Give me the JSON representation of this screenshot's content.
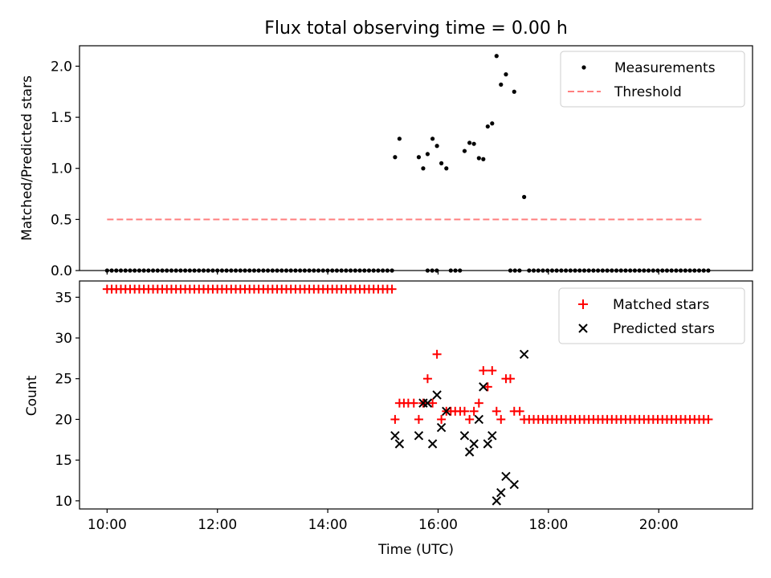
{
  "figure": {
    "title": "Flux total observing time = 0.00 h"
  },
  "chart_data": [
    {
      "type": "scatter",
      "ylabel": "Matched/Predicted stars",
      "xlabel": "",
      "xlim": [
        9.5,
        21.7
      ],
      "ylim": [
        0,
        2.2
      ],
      "xticks": [
        10,
        12,
        14,
        16,
        18,
        20
      ],
      "yticks": [
        0.0,
        0.5,
        1.0,
        1.5,
        2.0
      ],
      "ytick_labels": [
        "0.0",
        "0.5",
        "1.0",
        "1.5",
        "2.0"
      ],
      "legend_position": "top-right",
      "series": [
        {
          "name": "Measurements",
          "kind": "dot",
          "color": "#000000",
          "points": [
            [
              15.22,
              1.11
            ],
            [
              15.3,
              1.29
            ],
            [
              15.65,
              1.11
            ],
            [
              15.73,
              1.0
            ],
            [
              15.81,
              1.14
            ],
            [
              15.9,
              1.29
            ],
            [
              15.98,
              1.22
            ],
            [
              16.06,
              1.05
            ],
            [
              16.15,
              1.0
            ],
            [
              16.48,
              1.17
            ],
            [
              16.57,
              1.25
            ],
            [
              16.65,
              1.24
            ],
            [
              16.74,
              1.1
            ],
            [
              16.82,
              1.09
            ],
            [
              16.9,
              1.41
            ],
            [
              16.98,
              1.44
            ],
            [
              17.06,
              2.1
            ],
            [
              17.14,
              1.82
            ],
            [
              17.23,
              1.92
            ],
            [
              17.38,
              1.75
            ],
            [
              17.56,
              0.72
            ]
          ],
          "zero_segments": [
            [
              10.0,
              15.17,
              0.0833
            ],
            [
              15.81,
              15.98,
              0.0833
            ],
            [
              16.23,
              16.4,
              0.0833
            ],
            [
              17.31,
              17.48,
              0.0833
            ],
            [
              17.65,
              20.9,
              0.0833
            ]
          ]
        },
        {
          "name": "Threshold",
          "kind": "dashed-line",
          "color": "#ff7f7f",
          "x": [
            10.0,
            20.83
          ],
          "y": [
            0.5,
            0.5
          ]
        }
      ]
    },
    {
      "type": "scatter",
      "ylabel": "Count",
      "xlabel": "Time (UTC)",
      "xlim": [
        9.5,
        21.7
      ],
      "ylim": [
        9,
        37
      ],
      "xticks": [
        10,
        12,
        14,
        16,
        18,
        20
      ],
      "xtick_labels": [
        "10:00",
        "12:00",
        "14:00",
        "16:00",
        "18:00",
        "20:00"
      ],
      "yticks": [
        10,
        15,
        20,
        25,
        30,
        35
      ],
      "ytick_labels": [
        "10",
        "15",
        "20",
        "25",
        "30",
        "35"
      ],
      "legend_position": "top-right",
      "series": [
        {
          "name": "Matched stars",
          "kind": "plus",
          "color": "#ff0000",
          "constant_segments": [
            [
              10.0,
              15.17,
              0.0833,
              36
            ],
            [
              17.65,
              20.9,
              0.0833,
              20
            ]
          ],
          "points": [
            [
              15.22,
              20
            ],
            [
              15.3,
              22
            ],
            [
              15.38,
              22
            ],
            [
              15.46,
              22
            ],
            [
              15.56,
              22
            ],
            [
              15.65,
              20
            ],
            [
              15.73,
              22
            ],
            [
              15.81,
              25
            ],
            [
              15.9,
              22
            ],
            [
              15.98,
              28
            ],
            [
              16.06,
              20
            ],
            [
              16.15,
              21
            ],
            [
              16.23,
              21
            ],
            [
              16.31,
              21
            ],
            [
              16.4,
              21
            ],
            [
              16.48,
              21
            ],
            [
              16.57,
              20
            ],
            [
              16.65,
              21
            ],
            [
              16.74,
              22
            ],
            [
              16.82,
              26
            ],
            [
              16.9,
              24
            ],
            [
              16.98,
              26
            ],
            [
              17.06,
              21
            ],
            [
              17.14,
              20
            ],
            [
              17.23,
              25
            ],
            [
              17.31,
              25
            ],
            [
              17.38,
              21
            ],
            [
              17.48,
              21
            ],
            [
              17.56,
              20
            ]
          ]
        },
        {
          "name": "Predicted stars",
          "kind": "x",
          "color": "#000000",
          "points": [
            [
              15.22,
              18
            ],
            [
              15.3,
              17
            ],
            [
              15.65,
              18
            ],
            [
              15.73,
              22
            ],
            [
              15.81,
              22
            ],
            [
              15.9,
              17
            ],
            [
              15.98,
              23
            ],
            [
              16.06,
              19
            ],
            [
              16.15,
              21
            ],
            [
              16.48,
              18
            ],
            [
              16.57,
              16
            ],
            [
              16.65,
              17
            ],
            [
              16.74,
              20
            ],
            [
              16.82,
              24
            ],
            [
              16.9,
              17
            ],
            [
              16.98,
              18
            ],
            [
              17.06,
              10
            ],
            [
              17.14,
              11
            ],
            [
              17.23,
              13
            ],
            [
              17.38,
              12
            ],
            [
              17.56,
              28
            ]
          ]
        }
      ]
    }
  ]
}
